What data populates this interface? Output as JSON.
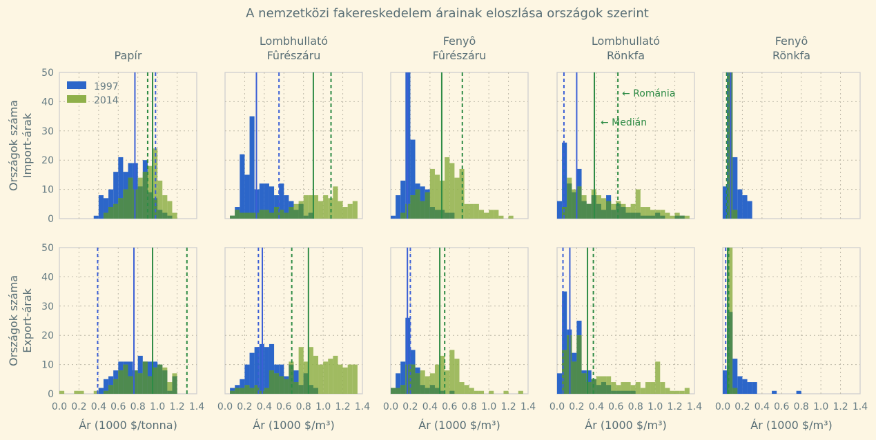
{
  "title": "A nemzetközi fakereskedelem árainak eloszlása országok szerint",
  "columns": [
    "Papír",
    "Lombhullató\nFûrészáru",
    "Fenyô\nFûrészáru",
    "Lombhullató\nRönkfa",
    "Fenyô\nRönkfa"
  ],
  "row_labels": [
    {
      "line1": "Országok száma",
      "line2": "Import-árak"
    },
    {
      "line1": "Országok száma",
      "line2": "Export-árak"
    }
  ],
  "xlabels": [
    "Ár (1000 $/tonna)",
    "Ár (1000 $/m³)",
    "Ár (1000 $/m³)",
    "Ár (1000 $/m³)",
    "Ár (1000 $/m³)"
  ],
  "legend": [
    {
      "label": "1997",
      "color": "#2c66c9"
    },
    {
      "label": "2014",
      "color": "#8fb04a"
    }
  ],
  "annotations": {
    "romania": "← Románia",
    "median": "← Medián"
  },
  "colors": {
    "c1997": "#2c66c9",
    "c2014": "#8fb04a",
    "overlap": "#4e8a4f",
    "median1997": "#3b5fd6",
    "median2014": "#2e8b45"
  },
  "chart_data": {
    "type": "bar",
    "xlim": [
      0.0,
      1.4
    ],
    "ylim": [
      0,
      50
    ],
    "xticks": [
      "0.0",
      "0.2",
      "0.4",
      "0.6",
      "0.8",
      "1.0",
      "1.2",
      "1.4"
    ],
    "yticks": [
      "0",
      "10",
      "20",
      "30",
      "40",
      "50"
    ],
    "bin_width": 0.05,
    "grid": true,
    "legend_position": "top-left",
    "panels": [
      {
        "row": 0,
        "col": 0,
        "h1997": [
          0,
          0,
          0,
          0,
          0,
          0,
          0,
          1,
          8,
          7,
          10,
          16,
          21,
          16,
          19,
          19,
          11,
          20,
          9,
          7,
          3,
          2,
          1,
          0
        ],
        "h2014": [
          0,
          0,
          0,
          0,
          0,
          0,
          0,
          0,
          0,
          2,
          4,
          5,
          7,
          10,
          14,
          10,
          14,
          16,
          18,
          24,
          13,
          8,
          6,
          2
        ],
        "med1997": 0.77,
        "med2014": 0.95,
        "rom1997": 0.98,
        "rom2014": 0.9
      },
      {
        "row": 0,
        "col": 1,
        "h1997": [
          0,
          1,
          4,
          22,
          15,
          35,
          10,
          12,
          12,
          11,
          8,
          12,
          8,
          6,
          3,
          5,
          1,
          2,
          0,
          0,
          0,
          0,
          0,
          0,
          0,
          0,
          0
        ],
        "h2014": [
          0,
          1,
          3,
          2,
          2,
          2,
          2,
          3,
          3,
          2,
          4,
          3,
          2,
          4,
          5,
          6,
          8,
          8,
          8,
          6,
          8,
          7,
          11,
          6,
          4,
          5,
          6
        ],
        "med1997": 0.32,
        "med2014": 0.9,
        "rom1997": 0.55,
        "rom2014": 1.08
      },
      {
        "row": 0,
        "col": 2,
        "h1997": [
          1,
          8,
          13,
          50,
          27,
          12,
          11,
          10,
          4,
          3,
          3,
          2,
          2,
          0,
          0,
          0,
          0,
          0,
          0,
          0,
          0,
          0,
          0,
          0,
          0,
          0,
          0
        ],
        "h2014": [
          0,
          0,
          2,
          5,
          8,
          10,
          6,
          9,
          17,
          15,
          13,
          21,
          19,
          14,
          17,
          5,
          5,
          5,
          3,
          2,
          3,
          3,
          1,
          0,
          1,
          0,
          0
        ],
        "med1997": 0.17,
        "med2014": 0.52,
        "rom1997": 0.17,
        "rom2014": 0.73
      },
      {
        "row": 0,
        "col": 3,
        "h1997": [
          6,
          26,
          12,
          9,
          17,
          6,
          5,
          8,
          5,
          3,
          8,
          3,
          5,
          4,
          2,
          2,
          2,
          1,
          1,
          1,
          2,
          1,
          0,
          0,
          1,
          1,
          0
        ],
        "h2014": [
          0,
          4,
          14,
          10,
          11,
          8,
          5,
          10,
          8,
          7,
          6,
          5,
          6,
          5,
          4,
          5,
          10,
          4,
          4,
          3,
          3,
          3,
          2,
          1,
          2,
          1,
          1
        ],
        "med1997": 0.2,
        "med2014": 0.38,
        "rom1997": 0.07,
        "rom2014": 0.62
      },
      {
        "row": 0,
        "col": 4,
        "h1997": [
          11,
          50,
          21,
          10,
          8,
          6,
          0,
          0,
          0,
          0,
          0,
          0,
          0,
          0,
          0,
          0,
          0,
          0,
          0,
          0,
          0,
          0,
          0,
          0,
          0,
          0,
          0,
          0,
          0
        ],
        "h2014": [
          0,
          50,
          3,
          0,
          0,
          0,
          0,
          0,
          0,
          0,
          0,
          0,
          0,
          0,
          0,
          0,
          0,
          0,
          0,
          0,
          0,
          0,
          0,
          0,
          0,
          0,
          0,
          0,
          0
        ],
        "med1997": 0.08,
        "med2014": 0.05,
        "rom1997": 0.05,
        "rom2014": 0.04
      },
      {
        "row": 1,
        "col": 0,
        "h1997": [
          0,
          0,
          0,
          0,
          0,
          0,
          0,
          0,
          2,
          5,
          6,
          8,
          11,
          11,
          11,
          8,
          13,
          11,
          11,
          11,
          10,
          8,
          1,
          6
        ],
        "h2014": [
          1,
          0,
          0,
          1,
          1,
          0,
          0,
          1,
          0,
          1,
          3,
          5,
          8,
          10,
          6,
          8,
          7,
          11,
          6,
          9,
          10,
          9,
          4,
          7
        ],
        "med1997": 0.76,
        "med2014": 0.95,
        "rom1997": 0.39,
        "rom2014": 1.3
      },
      {
        "row": 1,
        "col": 1,
        "h1997": [
          0,
          2,
          3,
          5,
          10,
          14,
          16,
          17,
          16,
          17,
          10,
          10,
          6,
          10,
          8,
          3,
          7,
          3,
          2,
          0,
          0,
          0,
          0,
          0,
          0,
          0,
          0
        ],
        "h2014": [
          0,
          1,
          2,
          2,
          3,
          2,
          3,
          1,
          2,
          8,
          7,
          6,
          5,
          11,
          4,
          16,
          11,
          16,
          13,
          10,
          11,
          12,
          13,
          10,
          9,
          10,
          10
        ],
        "med1997": 0.38,
        "med2014": 0.85,
        "rom1997": 0.34,
        "rom2014": 0.68
      },
      {
        "row": 1,
        "col": 2,
        "h1997": [
          2,
          7,
          11,
          26,
          15,
          9,
          3,
          2,
          3,
          2,
          1,
          0,
          1,
          0,
          0,
          0,
          0,
          0,
          0,
          0,
          0,
          0,
          0,
          0,
          0,
          0,
          0
        ],
        "h2014": [
          2,
          2,
          3,
          10,
          10,
          7,
          8,
          6,
          7,
          10,
          13,
          8,
          15,
          12,
          4,
          3,
          2,
          1,
          1,
          0,
          1,
          0,
          0,
          1,
          0,
          0,
          1
        ],
        "med1997": 0.17,
        "med2014": 0.5,
        "rom1997": 0.2,
        "rom2014": 0.55
      },
      {
        "row": 1,
        "col": 3,
        "h1997": [
          7,
          35,
          22,
          14,
          25,
          8,
          8,
          5,
          3,
          4,
          3,
          1,
          1,
          1,
          1,
          1,
          0,
          0,
          0,
          0,
          0,
          0,
          0,
          0,
          0,
          0,
          0
        ],
        "h2014": [
          0,
          15,
          20,
          11,
          20,
          7,
          4,
          5,
          6,
          6,
          6,
          4,
          3,
          4,
          4,
          3,
          4,
          2,
          4,
          4,
          11,
          4,
          2,
          1,
          1,
          1,
          2
        ],
        "med1997": 0.13,
        "med2014": 0.31,
        "rom1997": 0.06,
        "rom2014": 0.37
      },
      {
        "row": 1,
        "col": 4,
        "h1997": [
          8,
          28,
          12,
          6,
          5,
          4,
          4,
          0,
          0,
          0,
          1,
          0,
          0,
          0,
          0,
          1,
          0,
          0,
          0,
          0,
          0,
          0,
          0,
          0,
          0,
          0,
          0,
          0,
          0
        ],
        "h2014": [
          0,
          50,
          2,
          0,
          0,
          0,
          0,
          0,
          0,
          0,
          0,
          0,
          0,
          0,
          0,
          0,
          0,
          0,
          0,
          0,
          0,
          0,
          0,
          0,
          0,
          0,
          0,
          0,
          0
        ],
        "med1997": 0.05,
        "med2014": 0.05,
        "rom1997": 0.03,
        "rom2014": 0.06
      }
    ]
  }
}
